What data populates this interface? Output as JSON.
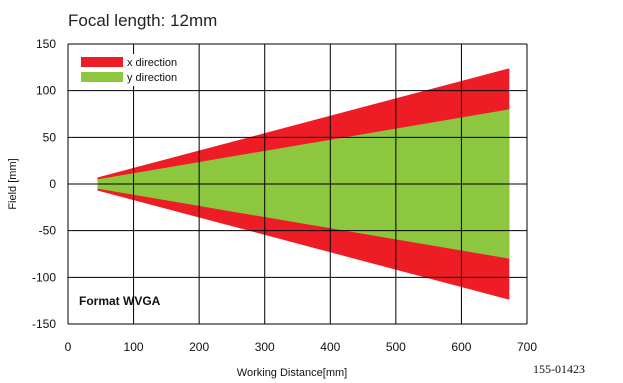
{
  "chart_data": {
    "type": "area",
    "title": "Focal length: 12mm",
    "xlabel": "Working Distance[mm]",
    "ylabel": "Field [mm]",
    "xlim": [
      0,
      700
    ],
    "ylim": [
      -150,
      150
    ],
    "xticks": [
      0,
      100,
      200,
      300,
      400,
      500,
      600,
      700
    ],
    "yticks": [
      150,
      100,
      50,
      0,
      -50,
      -100,
      -150
    ],
    "grid": true,
    "legend": "top-left",
    "annotation": "Format WVGA",
    "code": "155-01423",
    "series": [
      {
        "name": "x direction",
        "color": "#ee1c25",
        "x": [
          45,
          673
        ],
        "upper": [
          7,
          124
        ],
        "lower": [
          -7,
          -124
        ]
      },
      {
        "name": "y direction",
        "color": "#8dc63f",
        "x": [
          45,
          673
        ],
        "upper": [
          5,
          80
        ],
        "lower": [
          -5,
          -80
        ]
      }
    ]
  }
}
